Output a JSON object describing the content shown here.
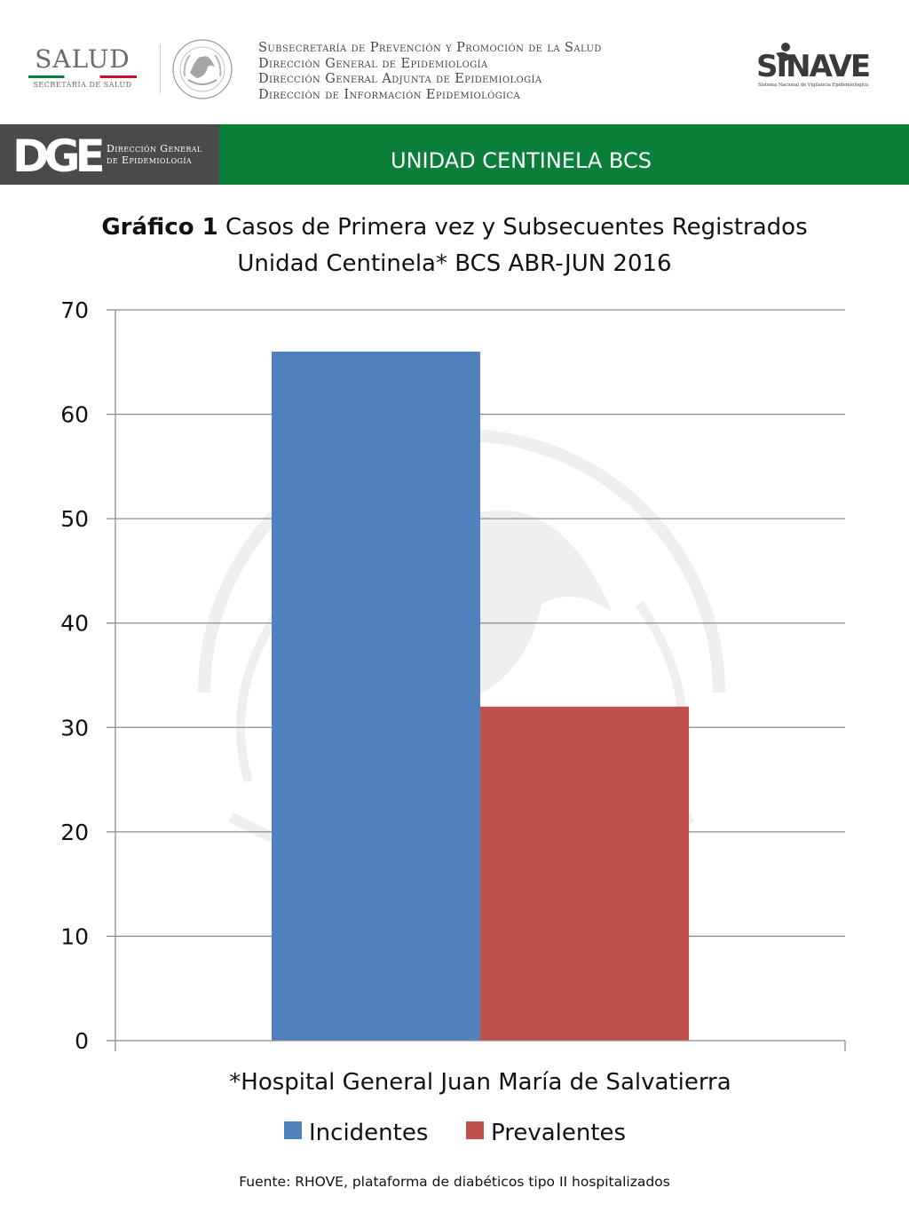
{
  "header": {
    "salud_logo": {
      "word": "SALUD",
      "subtitle": "SECRETARÍA DE SALUD"
    },
    "seal_icon": "mexican-coat-of-arms",
    "subsecretaria_lines": [
      "Subsecretaría de Prevención y Promoción de la Salud",
      "Dirección General de Epidemiología",
      "Dirección General Adjunta de Epidemiología",
      "Dirección de Información Epidemiológica"
    ],
    "sinave_logo": {
      "word": "SINAVE",
      "subtitle": "Sistema Nacional de Vigilancia Epidemiológica"
    }
  },
  "banner": {
    "dge_letters": "DGE",
    "dge_text_line1": "Dirección General",
    "dge_text_line2": "de Epidemiología",
    "title": "UNIDAD CENTINELA BCS"
  },
  "colors": {
    "green": "#0a7f3a",
    "dark_gray": "#4a4a4a",
    "incidentes": "#4f81bd",
    "prevalentes": "#c0504d"
  },
  "chart_data": {
    "type": "bar",
    "title_bold": "Gráfico 1",
    "title_rest": " Casos de Primera vez y Subsecuentes Registrados",
    "title_line2": "Unidad Centinela* BCS ABR-JUN 2016",
    "categories": [
      "*Hospital General Juan María de Salvatierra"
    ],
    "series": [
      {
        "name": "Incidentes",
        "values": [
          66
        ],
        "color": "#4f81bd"
      },
      {
        "name": "Prevalentes",
        "values": [
          32
        ],
        "color": "#c0504d"
      }
    ],
    "ylim": [
      0,
      70
    ],
    "yticks": [
      0,
      10,
      20,
      30,
      40,
      50,
      60,
      70
    ],
    "grid": true,
    "legend": "bottom"
  },
  "source": "Fuente: RHOVE, plataforma de diabéticos tipo II hospitalizados"
}
